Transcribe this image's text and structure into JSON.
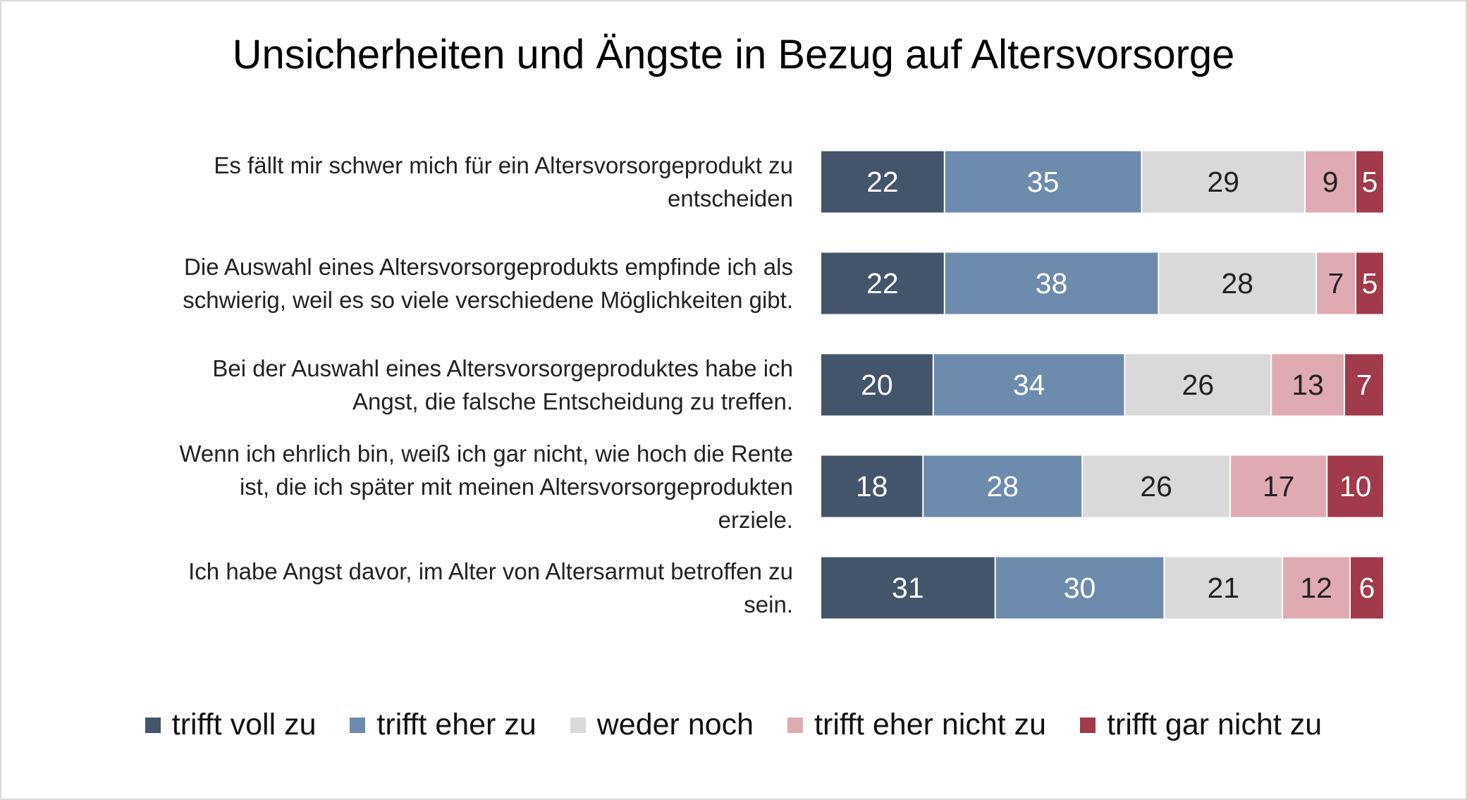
{
  "chart_data": {
    "type": "bar",
    "orientation": "horizontal",
    "stacked": true,
    "title": "Unsicherheiten und Ängste in Bezug auf Altersvorsorge",
    "xlabel": "",
    "ylabel": "",
    "categories": [
      "Es fällt mir schwer mich für ein Altersvorsorgeprodukt zu entscheiden",
      "Die Auswahl eines Altersvorsorgeprodukts empfinde ich als schwierig, weil es so viele verschiedene Möglichkeiten gibt.",
      "Bei der Auswahl eines Altersvorsorgeproduktes habe ich Angst, die falsche Entscheidung zu treffen.",
      "Wenn ich ehrlich bin, weiß ich gar nicht, wie hoch die Rente ist, die ich später mit meinen Altersvorsorgeprodukten erziele.",
      "Ich habe Angst davor, im Alter von Altersarmut betroffen zu sein."
    ],
    "category_lines": [
      [
        "Es fällt mir schwer mich für ein Altersvorsorgeprodukt zu",
        "entscheiden"
      ],
      [
        "Die Auswahl eines Altersvorsorgeprodukts empfinde ich als",
        "schwierig, weil es so viele verschiedene Möglichkeiten gibt."
      ],
      [
        "Bei der Auswahl eines Altersvorsorgeproduktes habe ich",
        "Angst, die falsche Entscheidung zu treffen."
      ],
      [
        "Wenn ich ehrlich bin, weiß ich gar nicht, wie hoch die Rente",
        "ist, die ich später mit meinen Altersvorsorgeprodukten",
        "erziele."
      ],
      [
        "Ich habe Angst davor, im Alter von Altersarmut betroffen zu",
        "sein."
      ]
    ],
    "series": [
      {
        "name": "trifft voll zu",
        "color": "#44546A",
        "label_color": "#ffffff",
        "values": [
          22,
          22,
          20,
          18,
          31
        ]
      },
      {
        "name": "trifft eher zu",
        "color": "#6D8BAD",
        "label_color": "#ffffff",
        "values": [
          35,
          38,
          34,
          28,
          30
        ]
      },
      {
        "name": "weder noch",
        "color": "#D9D9D9",
        "label_color": "#222222",
        "values": [
          29,
          28,
          26,
          26,
          21
        ]
      },
      {
        "name": "trifft eher nicht zu",
        "color": "#E0AAB2",
        "label_color": "#222222",
        "values": [
          9,
          7,
          13,
          17,
          12
        ]
      },
      {
        "name": "trifft gar nicht zu",
        "color": "#A13A4B",
        "label_color": "#ffffff",
        "values": [
          5,
          5,
          7,
          10,
          6
        ]
      }
    ],
    "data_labels": true,
    "grid": false,
    "legend_position": "bottom"
  }
}
